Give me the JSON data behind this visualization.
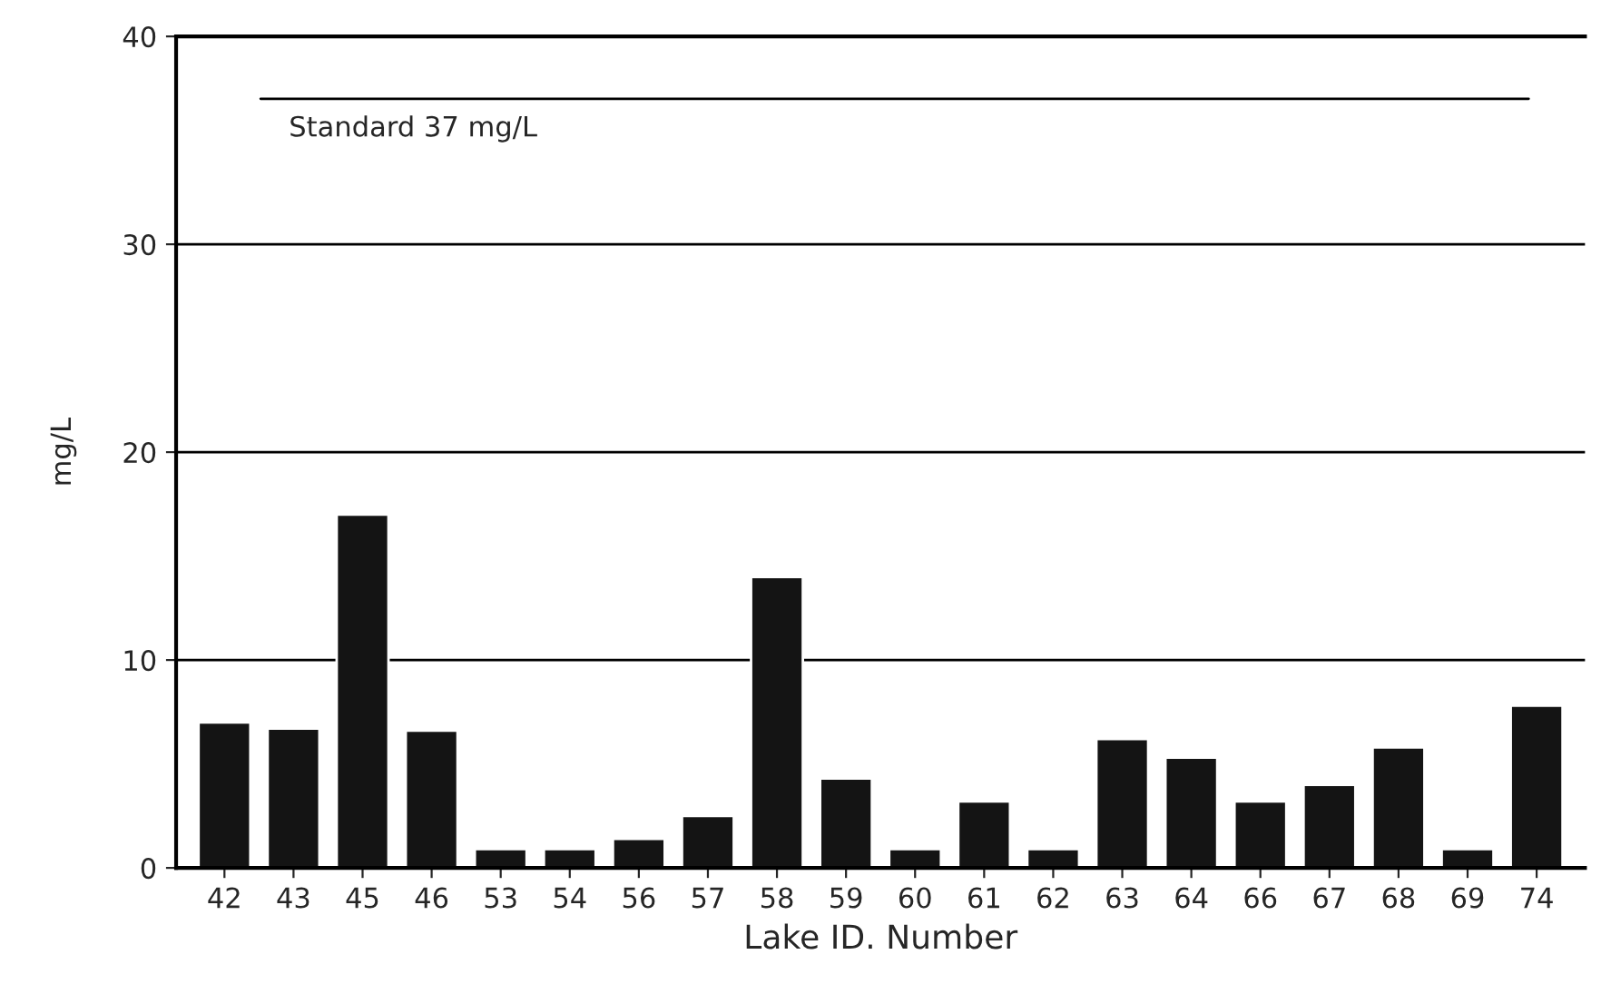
{
  "chart_data": {
    "type": "bar",
    "xlabel": "Lake ID. Number",
    "ylabel": "mg/L",
    "categories": [
      "42",
      "43",
      "45",
      "46",
      "53",
      "54",
      "56",
      "57",
      "58",
      "59",
      "60",
      "61",
      "62",
      "63",
      "64",
      "66",
      "67",
      "68",
      "69",
      "74"
    ],
    "series": [
      {
        "color": "#141414",
        "values": [
          7.0,
          6.7,
          17.0,
          6.6,
          0.9,
          0.9,
          1.4,
          2.5,
          14.0,
          4.3,
          0.9,
          3.2,
          0.9,
          6.2,
          5.3,
          3.2,
          4.0,
          5.8,
          0.9,
          7.8
        ]
      }
    ],
    "ylim": [
      0,
      40
    ],
    "yticks": [
      0,
      10,
      20,
      30,
      40
    ],
    "grid": "y",
    "ref_lines": [
      {
        "axis": "y",
        "value": 37,
        "label": "Standard 37 mg/L",
        "color": "#000000"
      }
    ]
  }
}
